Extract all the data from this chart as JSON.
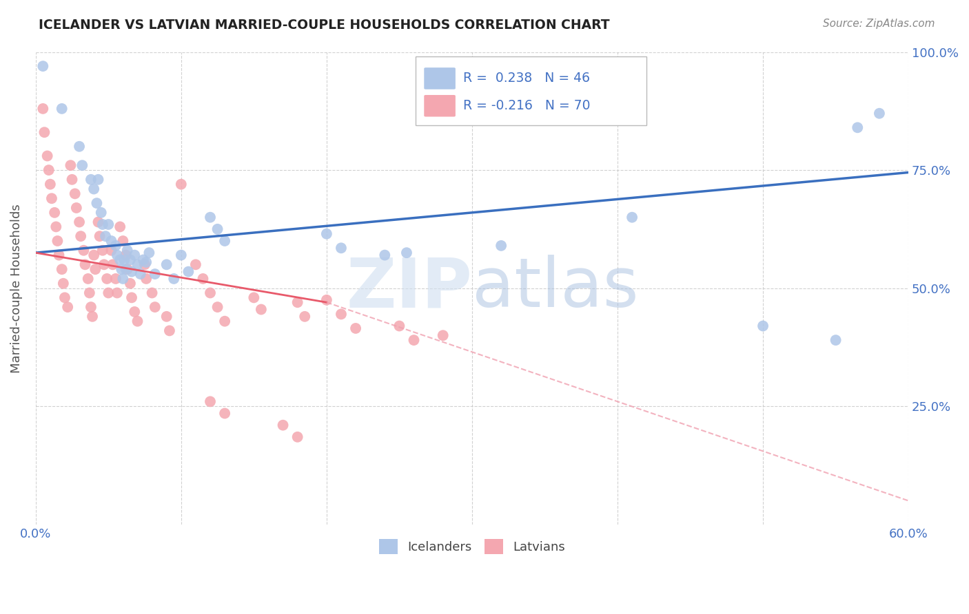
{
  "title": "ICELANDER VS LATVIAN MARRIED-COUPLE HOUSEHOLDS CORRELATION CHART",
  "source": "Source: ZipAtlas.com",
  "ylabel": "Married-couple Households",
  "xlim": [
    0.0,
    0.6
  ],
  "ylim": [
    0.0,
    1.0
  ],
  "x_ticks": [
    0.0,
    0.1,
    0.2,
    0.3,
    0.4,
    0.5,
    0.6
  ],
  "x_tick_labels": [
    "0.0%",
    "",
    "",
    "",
    "",
    "",
    "60.0%"
  ],
  "y_ticks_right": [
    1.0,
    0.75,
    0.5,
    0.25
  ],
  "y_tick_labels_right": [
    "100.0%",
    "75.0%",
    "50.0%",
    "25.0%"
  ],
  "icelander_color": "#aec6e8",
  "latvian_color": "#f4a7b0",
  "icelander_line_color": "#3a6fbf",
  "latvian_line_color_solid": "#e8596a",
  "latvian_line_color_dash": "#f0a0b0",
  "watermark": "ZIPatlas",
  "watermark_color": "#c8d8f0",
  "ice_line": [
    0.0,
    0.575,
    0.6,
    0.745
  ],
  "lat_line_solid": [
    0.0,
    0.575,
    0.2,
    0.47
  ],
  "lat_line_dash": [
    0.2,
    0.47,
    0.6,
    0.05
  ],
  "icelander_points": [
    [
      0.005,
      0.97
    ],
    [
      0.018,
      0.88
    ],
    [
      0.03,
      0.8
    ],
    [
      0.032,
      0.76
    ],
    [
      0.038,
      0.73
    ],
    [
      0.04,
      0.71
    ],
    [
      0.042,
      0.68
    ],
    [
      0.043,
      0.73
    ],
    [
      0.045,
      0.66
    ],
    [
      0.046,
      0.635
    ],
    [
      0.048,
      0.61
    ],
    [
      0.05,
      0.635
    ],
    [
      0.052,
      0.6
    ],
    [
      0.055,
      0.59
    ],
    [
      0.056,
      0.57
    ],
    [
      0.058,
      0.56
    ],
    [
      0.059,
      0.54
    ],
    [
      0.06,
      0.52
    ],
    [
      0.061,
      0.56
    ],
    [
      0.062,
      0.54
    ],
    [
      0.063,
      0.58
    ],
    [
      0.065,
      0.56
    ],
    [
      0.066,
      0.535
    ],
    [
      0.068,
      0.57
    ],
    [
      0.07,
      0.55
    ],
    [
      0.072,
      0.53
    ],
    [
      0.074,
      0.56
    ],
    [
      0.076,
      0.555
    ],
    [
      0.078,
      0.575
    ],
    [
      0.082,
      0.53
    ],
    [
      0.09,
      0.55
    ],
    [
      0.095,
      0.52
    ],
    [
      0.1,
      0.57
    ],
    [
      0.105,
      0.535
    ],
    [
      0.12,
      0.65
    ],
    [
      0.125,
      0.625
    ],
    [
      0.13,
      0.6
    ],
    [
      0.2,
      0.615
    ],
    [
      0.21,
      0.585
    ],
    [
      0.24,
      0.57
    ],
    [
      0.255,
      0.575
    ],
    [
      0.32,
      0.59
    ],
    [
      0.41,
      0.65
    ],
    [
      0.5,
      0.42
    ],
    [
      0.55,
      0.39
    ],
    [
      0.565,
      0.84
    ],
    [
      0.58,
      0.87
    ]
  ],
  "latvian_points": [
    [
      0.005,
      0.88
    ],
    [
      0.006,
      0.83
    ],
    [
      0.008,
      0.78
    ],
    [
      0.009,
      0.75
    ],
    [
      0.01,
      0.72
    ],
    [
      0.011,
      0.69
    ],
    [
      0.013,
      0.66
    ],
    [
      0.014,
      0.63
    ],
    [
      0.015,
      0.6
    ],
    [
      0.016,
      0.57
    ],
    [
      0.018,
      0.54
    ],
    [
      0.019,
      0.51
    ],
    [
      0.02,
      0.48
    ],
    [
      0.022,
      0.46
    ],
    [
      0.024,
      0.76
    ],
    [
      0.025,
      0.73
    ],
    [
      0.027,
      0.7
    ],
    [
      0.028,
      0.67
    ],
    [
      0.03,
      0.64
    ],
    [
      0.031,
      0.61
    ],
    [
      0.033,
      0.58
    ],
    [
      0.034,
      0.55
    ],
    [
      0.036,
      0.52
    ],
    [
      0.037,
      0.49
    ],
    [
      0.038,
      0.46
    ],
    [
      0.039,
      0.44
    ],
    [
      0.04,
      0.57
    ],
    [
      0.041,
      0.54
    ],
    [
      0.043,
      0.64
    ],
    [
      0.044,
      0.61
    ],
    [
      0.046,
      0.58
    ],
    [
      0.047,
      0.55
    ],
    [
      0.049,
      0.52
    ],
    [
      0.05,
      0.49
    ],
    [
      0.052,
      0.58
    ],
    [
      0.053,
      0.55
    ],
    [
      0.055,
      0.52
    ],
    [
      0.056,
      0.49
    ],
    [
      0.058,
      0.63
    ],
    [
      0.06,
      0.6
    ],
    [
      0.062,
      0.57
    ],
    [
      0.063,
      0.54
    ],
    [
      0.065,
      0.51
    ],
    [
      0.066,
      0.48
    ],
    [
      0.068,
      0.45
    ],
    [
      0.07,
      0.43
    ],
    [
      0.075,
      0.55
    ],
    [
      0.076,
      0.52
    ],
    [
      0.08,
      0.49
    ],
    [
      0.082,
      0.46
    ],
    [
      0.09,
      0.44
    ],
    [
      0.092,
      0.41
    ],
    [
      0.1,
      0.72
    ],
    [
      0.11,
      0.55
    ],
    [
      0.115,
      0.52
    ],
    [
      0.12,
      0.49
    ],
    [
      0.125,
      0.46
    ],
    [
      0.13,
      0.43
    ],
    [
      0.15,
      0.48
    ],
    [
      0.155,
      0.455
    ],
    [
      0.18,
      0.47
    ],
    [
      0.185,
      0.44
    ],
    [
      0.2,
      0.475
    ],
    [
      0.21,
      0.445
    ],
    [
      0.22,
      0.415
    ],
    [
      0.25,
      0.42
    ],
    [
      0.26,
      0.39
    ],
    [
      0.28,
      0.4
    ],
    [
      0.12,
      0.26
    ],
    [
      0.13,
      0.235
    ],
    [
      0.17,
      0.21
    ],
    [
      0.18,
      0.185
    ]
  ]
}
